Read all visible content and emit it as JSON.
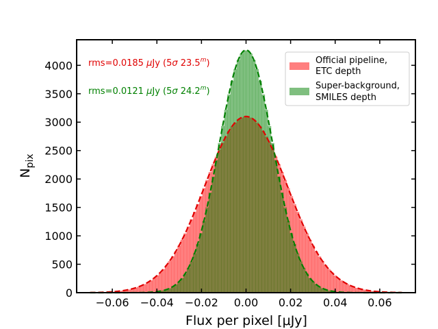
{
  "chart_data": {
    "type": "bar",
    "xlabel": "Flux per pixel [μJy]",
    "ylabel_main": "N",
    "ylabel_sub": "pix",
    "xlim": [
      -0.076,
      0.076
    ],
    "ylim": [
      0,
      4450
    ],
    "xticks": [
      -0.06,
      -0.04,
      -0.02,
      0.0,
      0.02,
      0.04,
      0.06
    ],
    "xtick_labels": [
      "−0.06",
      "−0.04",
      "−0.02",
      "0.00",
      "0.02",
      "0.04",
      "0.06"
    ],
    "yticks": [
      0,
      500,
      1000,
      1500,
      2000,
      2500,
      3000,
      3500,
      4000
    ],
    "ytick_labels": [
      "0",
      "500",
      "1000",
      "1500",
      "2000",
      "2500",
      "3000",
      "3500",
      "4000"
    ],
    "hist_range": [
      -0.07,
      0.07
    ],
    "bin_count": 100,
    "series": [
      {
        "legend_lines": [
          "Official pipeline,",
          "ETC depth"
        ],
        "color": "#ff0000",
        "fit_color": "#e00000",
        "peak": 3100,
        "sigma": 0.0185,
        "mean": 0.0,
        "annotation": {
          "prefix": "rms=0.0185 ",
          "mu": "μ",
          "unit": "Jy (5",
          "sig": "σ",
          "mag": " 23.5",
          "sup": "m",
          "close": ")"
        }
      },
      {
        "legend_lines": [
          "Super-background,",
          "SMILES depth"
        ],
        "color": "#008000",
        "fit_color": "#008000",
        "peak": 4270,
        "sigma": 0.0121,
        "mean": 0.0,
        "annotation": {
          "prefix": "rms=0.0121 ",
          "mu": "μ",
          "unit": "Jy (5",
          "sig": "σ",
          "mag": " 24.2",
          "sup": "m",
          "close": ")"
        }
      }
    ],
    "legend_position": "top-right",
    "grid": false
  }
}
